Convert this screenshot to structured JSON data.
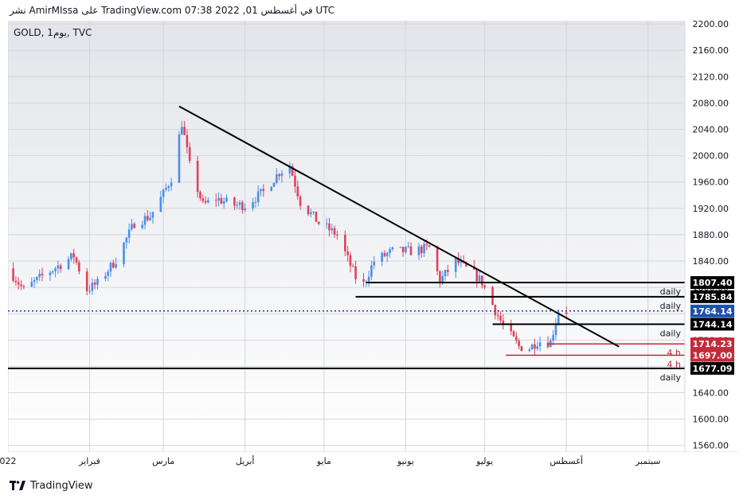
{
  "caption": "نشر AmirMIssa على TradingView.com في أغسطس 01, 2022 07:38 UTC",
  "footer_brand": "TradingView",
  "chart_data": {
    "type": "candlestick",
    "symbol_label": "GOLD, 1يوم, TVC",
    "ylim": [
      1550,
      2205
    ],
    "y_ticks": [
      "1560.00",
      "1600.00",
      "1640.00",
      "1680.00",
      "1720.00",
      "1760.00",
      "1800.00",
      "1840.00",
      "1880.00",
      "1920.00",
      "1960.00",
      "2000.00",
      "2040.00",
      "2080.00",
      "2120.00",
      "2160.00",
      "2200.00"
    ],
    "y_tick_values": [
      1560,
      1600,
      1640,
      1680,
      1720,
      1760,
      1800,
      1840,
      1880,
      1920,
      1960,
      2000,
      2040,
      2080,
      2120,
      2160,
      2200
    ],
    "x_range": [
      "2022-01-01",
      "2022-09-15"
    ],
    "x_ticks": [
      {
        "date": "2022-01-01",
        "label": "022"
      },
      {
        "date": "2022-02-01",
        "label": "فبراير"
      },
      {
        "date": "2022-03-01",
        "label": "مارس"
      },
      {
        "date": "2022-04-01",
        "label": "أبريل"
      },
      {
        "date": "2022-05-01",
        "label": "مايو"
      },
      {
        "date": "2022-06-01",
        "label": "يونيو"
      },
      {
        "date": "2022-07-01",
        "label": "يوليو"
      },
      {
        "date": "2022-08-01",
        "label": "أغسطس"
      },
      {
        "date": "2022-09-01",
        "label": "سبتمبر"
      }
    ],
    "colors": {
      "up": "#4a8fe8",
      "down": "#e0425a",
      "bg_top": "#e3e5ea",
      "bg_bottom": "#ffffff",
      "grid": "#d4d6dc",
      "last_price": "#1e3fa8"
    },
    "last_price": {
      "value": 1764.14,
      "label": "1764.14",
      "color": "#1e4fb4"
    },
    "ohlc_path": [
      {
        "date": "2022-01-01",
        "close": 1829
      },
      {
        "date": "2022-01-07",
        "close": 1796
      },
      {
        "date": "2022-01-14",
        "close": 1817
      },
      {
        "date": "2022-01-21",
        "close": 1835
      },
      {
        "date": "2022-01-26",
        "close": 1848
      },
      {
        "date": "2022-01-31",
        "close": 1797
      },
      {
        "date": "2022-02-04",
        "close": 1806
      },
      {
        "date": "2022-02-11",
        "close": 1842
      },
      {
        "date": "2022-02-18",
        "close": 1898
      },
      {
        "date": "2022-02-24",
        "close": 1908
      },
      {
        "date": "2022-03-01",
        "close": 1942
      },
      {
        "date": "2022-03-04",
        "close": 1966
      },
      {
        "date": "2022-03-08",
        "close": 2050
      },
      {
        "date": "2022-03-11",
        "close": 1985
      },
      {
        "date": "2022-03-16",
        "close": 1925
      },
      {
        "date": "2022-03-21",
        "close": 1935
      },
      {
        "date": "2022-03-28",
        "close": 1925
      },
      {
        "date": "2022-04-01",
        "close": 1925
      },
      {
        "date": "2022-04-08",
        "close": 1945
      },
      {
        "date": "2022-04-14",
        "close": 1975
      },
      {
        "date": "2022-04-18",
        "close": 1985
      },
      {
        "date": "2022-04-22",
        "close": 1930
      },
      {
        "date": "2022-04-29",
        "close": 1898
      },
      {
        "date": "2022-05-06",
        "close": 1880
      },
      {
        "date": "2022-05-13",
        "close": 1815
      },
      {
        "date": "2022-05-16",
        "close": 1805
      },
      {
        "date": "2022-05-20",
        "close": 1840
      },
      {
        "date": "2022-05-27",
        "close": 1855
      },
      {
        "date": "2022-06-03",
        "close": 1855
      },
      {
        "date": "2022-06-10",
        "close": 1860
      },
      {
        "date": "2022-06-14",
        "close": 1810
      },
      {
        "date": "2022-06-20",
        "close": 1840
      },
      {
        "date": "2022-06-27",
        "close": 1820
      },
      {
        "date": "2022-06-30",
        "close": 1808
      },
      {
        "date": "2022-07-05",
        "close": 1765
      },
      {
        "date": "2022-07-08",
        "close": 1742
      },
      {
        "date": "2022-07-14",
        "close": 1710
      },
      {
        "date": "2022-07-18",
        "close": 1708
      },
      {
        "date": "2022-07-21",
        "close": 1718
      },
      {
        "date": "2022-07-26",
        "close": 1717
      },
      {
        "date": "2022-07-29",
        "close": 1765
      },
      {
        "date": "2022-08-01",
        "close": 1764
      }
    ],
    "trendline": {
      "from": {
        "date": "2022-03-07",
        "price": 2075
      },
      "to": {
        "date": "2022-08-21",
        "price": 1710
      },
      "color": "#000000"
    },
    "levels": [
      {
        "value": 1807.4,
        "label": "1807.40",
        "start": "2022-05-17",
        "tag": "daily",
        "line_color": "#000000",
        "label_bg": "#000000",
        "tag_color": "#131722"
      },
      {
        "value": 1785.84,
        "label": "1785.84",
        "start": "2022-05-13",
        "tag": "daily",
        "line_color": "#000000",
        "label_bg": "#000000",
        "tag_color": "#131722"
      },
      {
        "value": 1744.14,
        "label": "1744.14",
        "start": "2022-07-04",
        "tag": "daily",
        "line_color": "#000000",
        "label_bg": "#000000",
        "tag_color": "#131722"
      },
      {
        "value": 1714.23,
        "label": "1714.23",
        "start": "2022-07-25",
        "tag": "4 h",
        "line_color": "#c62a3a",
        "label_bg": "#c62a3a",
        "tag_color": "#c62a3a"
      },
      {
        "value": 1697.0,
        "label": "1697.00",
        "start": "2022-07-09",
        "tag": "4 h",
        "line_color": "#c62a3a",
        "label_bg": "#c62a3a",
        "tag_color": "#c62a3a"
      },
      {
        "value": 1677.09,
        "label": "1677.09",
        "start": "2022-01-01",
        "tag": "daily",
        "line_color": "#000000",
        "label_bg": "#000000",
        "tag_color": "#131722"
      }
    ]
  }
}
